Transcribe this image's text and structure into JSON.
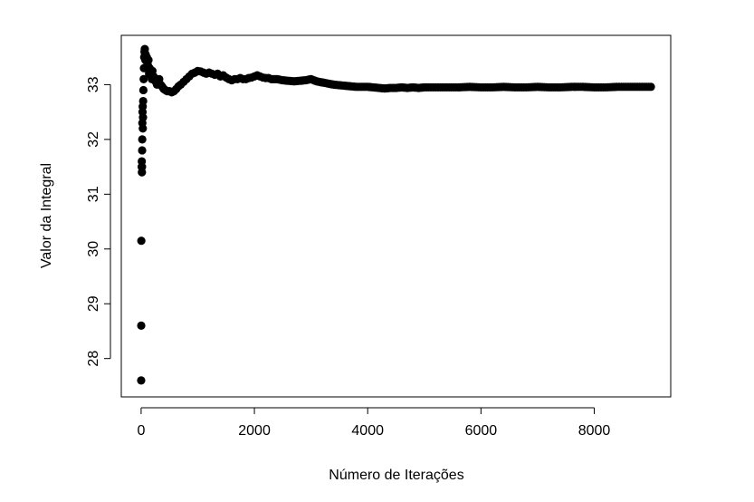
{
  "chart_data": {
    "type": "scatter",
    "title": "",
    "xlabel": "Número de Iterações",
    "ylabel": "Valor da Integral",
    "xlim": [
      -350,
      9350
    ],
    "ylim": [
      27.3,
      33.9
    ],
    "x_ticks": [
      0,
      2000,
      4000,
      6000,
      8000
    ],
    "y_ticks": [
      28,
      29,
      30,
      31,
      32,
      33
    ],
    "grid": false,
    "legend": "none",
    "marker_color": "#000000",
    "series": [
      {
        "x": [
          1,
          2,
          4,
          10,
          12,
          14,
          16,
          18,
          20,
          22,
          25,
          28,
          30,
          33,
          36,
          40,
          45,
          50,
          55,
          60,
          65,
          70,
          75,
          80,
          90,
          100,
          110,
          120,
          130,
          140,
          150,
          160,
          170,
          180,
          190,
          200,
          220,
          240,
          260,
          280,
          300,
          320,
          340,
          360,
          380,
          400,
          430,
          460,
          500,
          540,
          580,
          620,
          660,
          700,
          750,
          800,
          850,
          900,
          950,
          1000,
          1050,
          1100,
          1150,
          1200,
          1250,
          1300,
          1350,
          1400,
          1450,
          1500,
          1550,
          1600,
          1650,
          1700,
          1750,
          1800,
          1850,
          1900,
          1950,
          2000,
          2050,
          2100,
          2150,
          2200,
          2250,
          2300,
          2400,
          2500,
          2600,
          2700,
          2800,
          2900,
          3000,
          3100,
          3200,
          3300,
          3400,
          3500,
          3600,
          3700,
          3800,
          3900,
          4000,
          4100,
          4200,
          4300,
          4400,
          4500,
          4600,
          4700,
          4800,
          4900,
          5000,
          5200,
          5400,
          5600,
          5800,
          6000,
          6200,
          6400,
          6600,
          6800,
          7000,
          7200,
          7400,
          7600,
          7800,
          8000,
          8200,
          8400,
          8600,
          8800,
          9000
        ],
        "y": [
          27.6,
          28.6,
          30.15,
          31.5,
          31.6,
          31.4,
          31.5,
          31.8,
          32.0,
          32.3,
          32.5,
          32.6,
          32.2,
          32.4,
          32.7,
          32.9,
          33.1,
          33.3,
          33.5,
          33.6,
          33.65,
          33.55,
          33.45,
          33.55,
          33.3,
          33.5,
          33.4,
          33.35,
          33.45,
          33.2,
          33.3,
          33.25,
          33.2,
          33.15,
          33.1,
          33.25,
          33.15,
          33.1,
          33.05,
          33.0,
          33.05,
          33.1,
          33.0,
          32.98,
          32.95,
          32.92,
          32.9,
          32.88,
          32.88,
          32.86,
          32.88,
          32.92,
          32.97,
          33.0,
          33.05,
          33.1,
          33.15,
          33.2,
          33.22,
          33.25,
          33.24,
          33.22,
          33.2,
          33.22,
          33.2,
          33.18,
          33.2,
          33.15,
          33.17,
          33.13,
          33.1,
          33.08,
          33.1,
          33.1,
          33.12,
          33.1,
          33.1,
          33.12,
          33.13,
          33.15,
          33.17,
          33.15,
          33.13,
          33.12,
          33.12,
          33.1,
          33.1,
          33.08,
          33.07,
          33.06,
          33.07,
          33.08,
          33.1,
          33.06,
          33.04,
          33.02,
          33.0,
          32.99,
          32.98,
          32.97,
          32.96,
          32.96,
          32.96,
          32.95,
          32.94,
          32.93,
          32.94,
          32.94,
          32.95,
          32.94,
          32.95,
          32.94,
          32.95,
          32.95,
          32.95,
          32.95,
          32.96,
          32.95,
          32.95,
          32.96,
          32.95,
          32.95,
          32.96,
          32.95,
          32.95,
          32.96,
          32.96,
          32.95,
          32.95,
          32.96,
          32.96,
          32.96,
          32.96
        ]
      }
    ]
  }
}
